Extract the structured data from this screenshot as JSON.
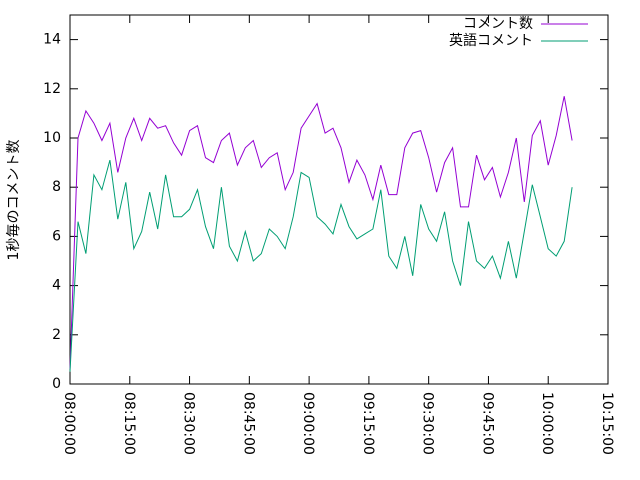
{
  "chart_data": {
    "type": "line",
    "ylabel": "1秒毎のコメント数",
    "x": [
      28800,
      28920,
      29040,
      29160,
      29280,
      29400,
      29520,
      29640,
      29760,
      29880,
      30000,
      30120,
      30240,
      30360,
      30480,
      30600,
      30720,
      30840,
      30960,
      31080,
      31200,
      31320,
      31440,
      31560,
      31680,
      31800,
      31920,
      32040,
      32160,
      32280,
      32400,
      32520,
      32640,
      32760,
      32880,
      33000,
      33120,
      33240,
      33360,
      33480,
      33600,
      33720,
      33840,
      33960,
      34080,
      34200,
      34320,
      34440,
      34560,
      34680,
      34800,
      34920,
      35040,
      35160,
      35280,
      35400,
      35520,
      35640,
      35760,
      35880,
      36000,
      36120,
      36240,
      36360
    ],
    "series": [
      {
        "name": "コメント数",
        "color": "#9400d3",
        "values": [
          0.6,
          10.0,
          11.1,
          10.6,
          9.9,
          10.6,
          8.6,
          10.0,
          10.8,
          9.9,
          10.8,
          10.4,
          10.5,
          9.8,
          9.3,
          10.3,
          10.5,
          9.2,
          9.0,
          9.9,
          10.2,
          8.9,
          9.6,
          9.9,
          8.8,
          9.2,
          9.4,
          7.9,
          8.6,
          10.4,
          10.9,
          11.4,
          10.2,
          10.4,
          9.6,
          8.2,
          9.1,
          8.5,
          7.5,
          8.9,
          7.7,
          7.7,
          9.6,
          10.2,
          10.3,
          9.2,
          7.8,
          9.0,
          9.6,
          7.2,
          7.2,
          9.3,
          8.3,
          8.8,
          7.6,
          8.6,
          10.0,
          7.4,
          10.1,
          10.7,
          8.9,
          10.1,
          11.7,
          9.9
        ]
      },
      {
        "name": "英語コメント",
        "color": "#009e73",
        "values": [
          0.5,
          6.6,
          5.3,
          8.5,
          7.9,
          9.1,
          6.7,
          8.2,
          5.5,
          6.2,
          7.8,
          6.3,
          8.5,
          6.8,
          6.8,
          7.1,
          7.9,
          6.4,
          5.5,
          8.0,
          5.6,
          5.0,
          6.2,
          5.0,
          5.3,
          6.3,
          6.0,
          5.5,
          6.8,
          8.6,
          8.4,
          6.8,
          6.5,
          6.1,
          7.3,
          6.4,
          5.9,
          6.1,
          6.3,
          7.9,
          5.2,
          4.7,
          6.0,
          4.4,
          7.3,
          6.3,
          5.8,
          7.0,
          5.0,
          4.0,
          6.6,
          5.0,
          4.7,
          5.2,
          4.3,
          5.8,
          4.3,
          6.2,
          8.1,
          6.8,
          5.5,
          5.2,
          5.8,
          8.0
        ]
      }
    ],
    "xlim": [
      28800,
      36900
    ],
    "xticks": [
      {
        "value": 28800,
        "label": "08:00:00"
      },
      {
        "value": 29700,
        "label": "08:15:00"
      },
      {
        "value": 30600,
        "label": "08:30:00"
      },
      {
        "value": 31500,
        "label": "08:45:00"
      },
      {
        "value": 32400,
        "label": "09:00:00"
      },
      {
        "value": 33300,
        "label": "09:15:00"
      },
      {
        "value": 34200,
        "label": "09:30:00"
      },
      {
        "value": 35100,
        "label": "09:45:00"
      },
      {
        "value": 36000,
        "label": "10:00:00"
      },
      {
        "value": 36900,
        "label": "10:15:00"
      }
    ],
    "ylim": [
      0,
      15
    ],
    "yticks": [
      0,
      2,
      4,
      6,
      8,
      10,
      12,
      14
    ],
    "legend": "top-right"
  }
}
